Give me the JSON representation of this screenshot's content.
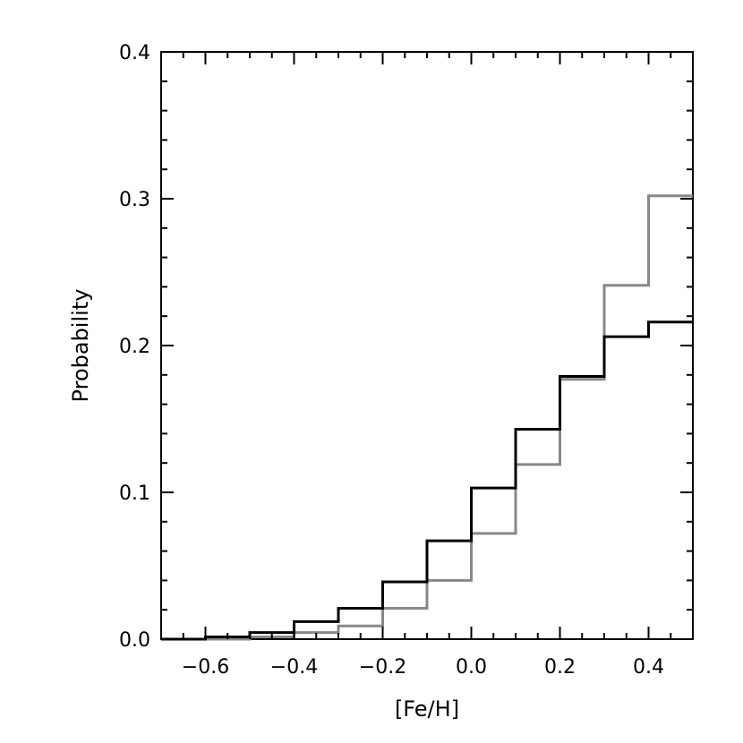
{
  "chart_data": {
    "type": "histogram",
    "xlabel": "[Fe/H]",
    "ylabel": "Probability",
    "xlim": [
      -0.7,
      0.5
    ],
    "ylim": [
      0,
      0.4
    ],
    "x_ticks": [
      -0.6,
      -0.4,
      -0.2,
      0.0,
      0.2,
      0.4
    ],
    "x_tick_labels": [
      "−0.6",
      "−0.4",
      "−0.2",
      "0.0",
      "0.2",
      "0.4"
    ],
    "y_ticks": [
      0.0,
      0.1,
      0.2,
      0.3,
      0.4
    ],
    "y_tick_labels": [
      "0.0",
      "0.1",
      "0.2",
      "0.3",
      "0.4"
    ],
    "bin_edges": [
      -0.7,
      -0.6,
      -0.5,
      -0.4,
      -0.3,
      -0.2,
      -0.1,
      0.0,
      0.1,
      0.2,
      0.3,
      0.4,
      0.5
    ],
    "series": [
      {
        "color": "#000000",
        "values": [
          0.0,
          0.0015,
          0.0045,
          0.012,
          0.021,
          0.039,
          0.067,
          0.103,
          0.143,
          0.179,
          0.206,
          0.216
        ]
      },
      {
        "color": "#888888",
        "values": [
          0.0,
          0.0,
          0.0015,
          0.0045,
          0.009,
          0.021,
          0.04,
          0.072,
          0.119,
          0.177,
          0.241,
          0.302
        ]
      }
    ],
    "grid": false,
    "legend": "none"
  }
}
